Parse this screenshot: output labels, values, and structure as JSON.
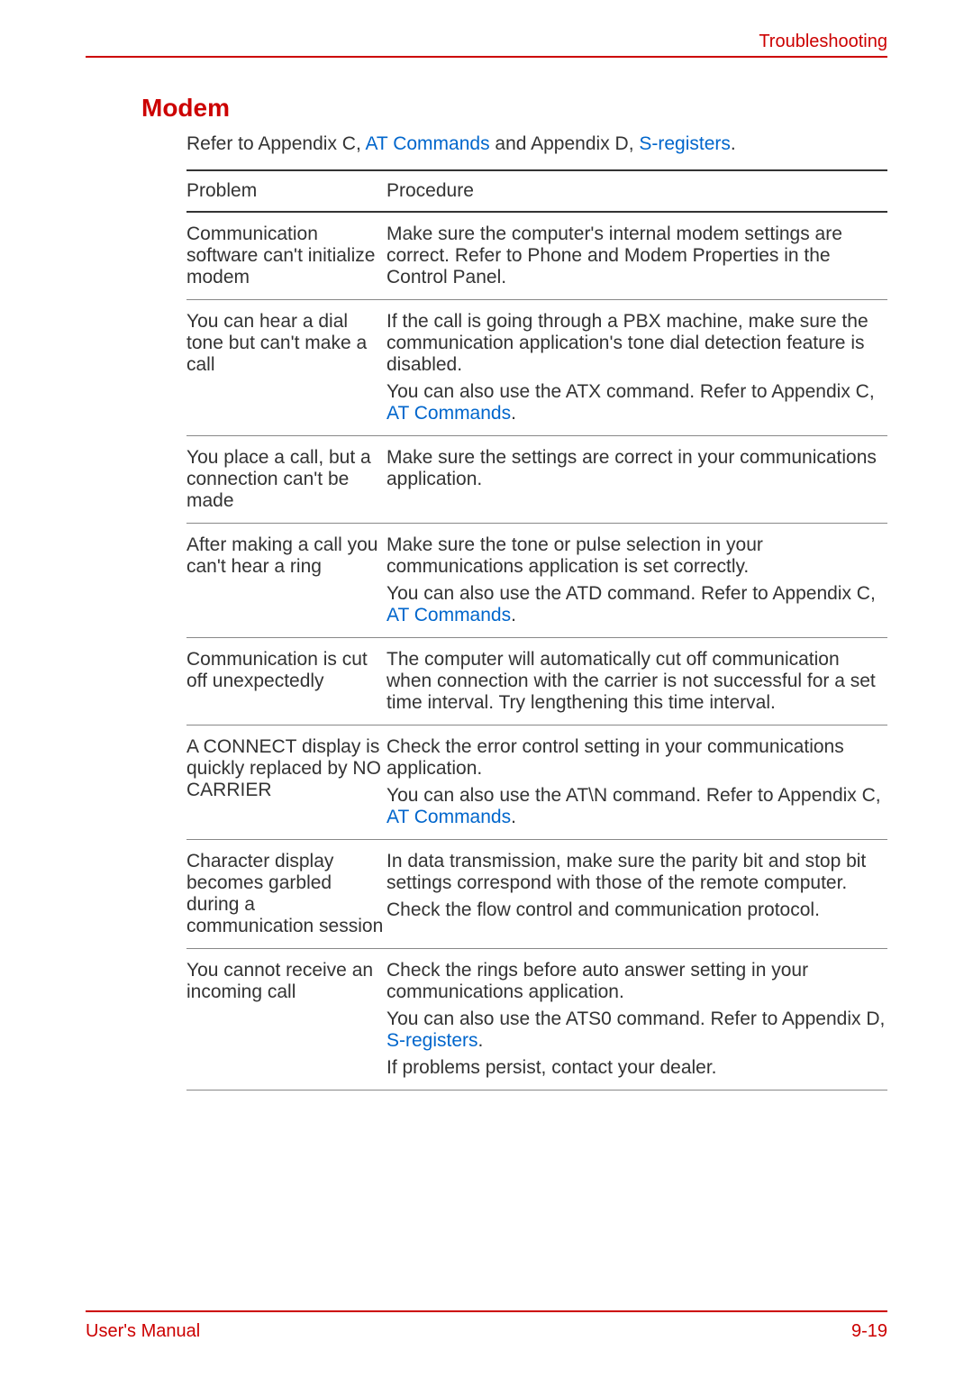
{
  "header": {
    "title": "Troubleshooting"
  },
  "section": {
    "title": "Modem",
    "intro_prefix": "Refer to Appendix C, ",
    "intro_link1": "AT Commands",
    "intro_mid": " and Appendix D, ",
    "intro_link2": "S-registers",
    "intro_suffix": "."
  },
  "table": {
    "header_problem": "Problem",
    "header_procedure": "Procedure",
    "rows": [
      {
        "problem": "Communication software can't initialize modem",
        "procedures": [
          {
            "plain": "Make sure the computer's internal modem settings are correct. Refer to Phone and Modem Properties in the Control Panel."
          }
        ]
      },
      {
        "problem": "You can hear a dial tone but can't make a call",
        "procedures": [
          {
            "plain": "If the call is going through a PBX machine, make sure the communication application's tone dial detection feature is disabled."
          },
          {
            "prefix": "You can also use the ATX command. Refer to Appendix C, ",
            "link": "AT Commands",
            "suffix": "."
          }
        ]
      },
      {
        "problem": "You place a call, but a connection can't be made",
        "procedures": [
          {
            "plain": "Make sure the settings are correct in your communications application."
          }
        ]
      },
      {
        "problem": "After making a call you can't hear a ring",
        "procedures": [
          {
            "plain": "Make sure the tone or pulse selection in your communications application is set correctly."
          },
          {
            "prefix": "You can also use the ATD command. Refer to Appendix C, ",
            "link": "AT Commands",
            "suffix": "."
          }
        ]
      },
      {
        "problem": "Communication is cut off unexpectedly",
        "procedures": [
          {
            "plain": "The computer will automatically cut off communication when connection with the carrier is not successful for a set time interval. Try lengthening this time interval."
          }
        ]
      },
      {
        "problem": "A CONNECT display is quickly replaced by NO CARRIER",
        "procedures": [
          {
            "plain": "Check the error control setting in your communications application."
          },
          {
            "prefix": "You can also use the AT\\N command. Refer to Appendix C, ",
            "link": "AT Commands",
            "suffix": "."
          }
        ]
      },
      {
        "problem": "Character display becomes garbled during a communication session",
        "procedures": [
          {
            "plain": "In data transmission, make sure the parity bit and stop bit settings correspond with those of the remote computer."
          },
          {
            "plain": "Check the flow control and communication protocol."
          }
        ]
      },
      {
        "problem": "You cannot receive an incoming call",
        "procedures": [
          {
            "plain": "Check the rings before auto answer setting in your communications application."
          },
          {
            "prefix": "You can also use the ATS0 command. Refer to Appendix D, ",
            "link": "S-registers",
            "suffix": "."
          },
          {
            "plain": "If problems persist, contact your dealer."
          }
        ]
      }
    ]
  },
  "footer": {
    "left": "User's Manual",
    "right": "9-19"
  },
  "colors": {
    "accent": "#cc0000",
    "link": "#0066cc",
    "text": "#333333",
    "border_light": "#888888"
  }
}
